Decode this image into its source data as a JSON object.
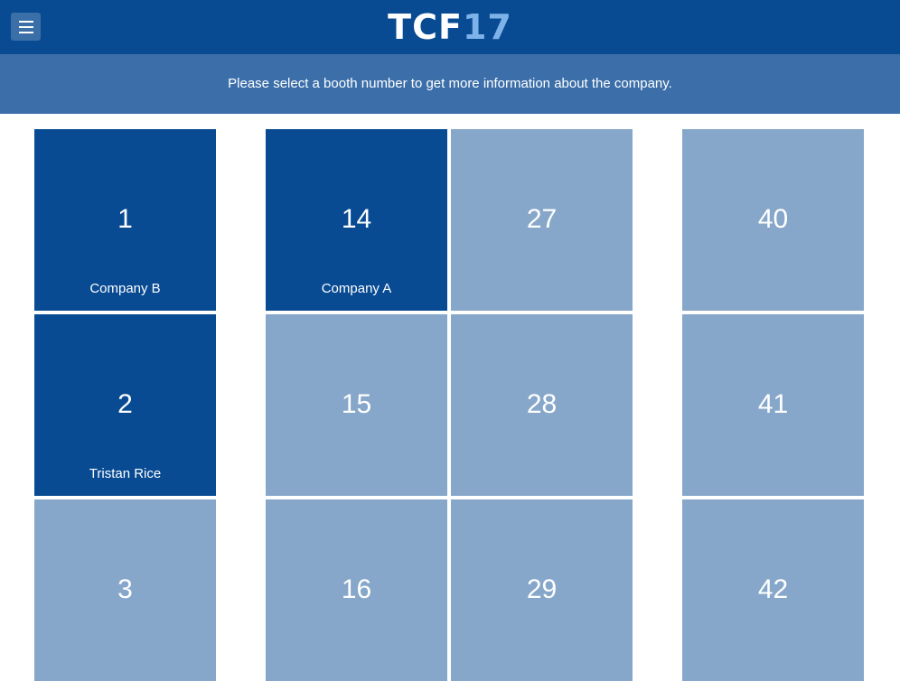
{
  "header": {
    "logo_part1": "TCF",
    "logo_part2": "17",
    "menu_icon": "hamburger-menu-icon"
  },
  "banner": {
    "message": "Please select a booth number to get more information about the company."
  },
  "booths": [
    {
      "number": "1",
      "company": "Company B",
      "taken": true
    },
    {
      "number": "2",
      "company": "Tristan Rice",
      "taken": true
    },
    {
      "number": "3",
      "company": "",
      "taken": false
    },
    {
      "number": "14",
      "company": "Company A",
      "taken": true
    },
    {
      "number": "15",
      "company": "",
      "taken": false
    },
    {
      "number": "16",
      "company": "",
      "taken": false
    },
    {
      "number": "27",
      "company": "",
      "taken": false
    },
    {
      "number": "28",
      "company": "",
      "taken": false
    },
    {
      "number": "29",
      "company": "",
      "taken": false
    },
    {
      "number": "40",
      "company": "",
      "taken": false
    },
    {
      "number": "41",
      "company": "",
      "taken": false
    },
    {
      "number": "42",
      "company": "",
      "taken": false
    }
  ],
  "colors": {
    "header_bg": "#084b93",
    "banner_bg": "#3c6faa",
    "booth_taken": "#084b93",
    "booth_available": "#86a7ca",
    "logo_accent": "#7eb3ea"
  }
}
